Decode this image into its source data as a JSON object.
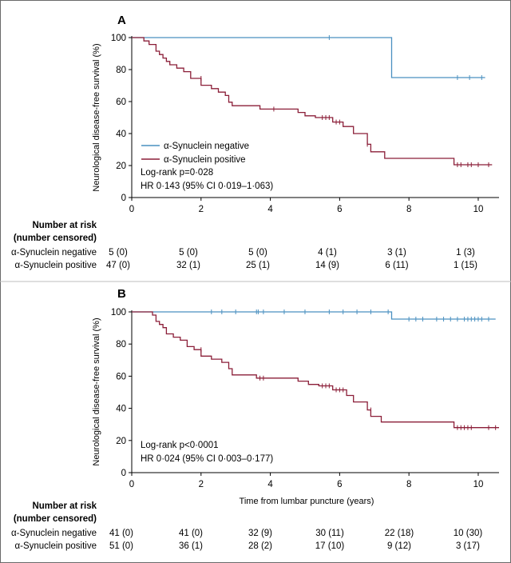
{
  "colors": {
    "negative": "#4a90c0",
    "positive": "#8b1e38",
    "axis": "#000000",
    "border": "#6a6a6a"
  },
  "chart_data": [
    {
      "type": "line",
      "panel": "A",
      "xlabel": "",
      "ylabel": "Neurological disease-free survival (%)",
      "xlim": [
        0,
        10.6
      ],
      "ylim": [
        0,
        100
      ],
      "xticks": [
        "0",
        "2",
        "4",
        "6",
        "8",
        "10"
      ],
      "yticks": [
        "0",
        "20",
        "40",
        "60",
        "80",
        "100"
      ],
      "legend_position": "middle-left",
      "series": [
        {
          "name": "α-Synuclein negative",
          "color_key": "negative",
          "steps": [
            [
              0,
              100
            ],
            [
              7.5,
              100
            ],
            [
              7.5,
              75
            ],
            [
              10.2,
              75
            ]
          ],
          "censored": [
            [
              5.7,
              100
            ],
            [
              9.4,
              75
            ],
            [
              9.75,
              75
            ],
            [
              10.1,
              75
            ]
          ]
        },
        {
          "name": "α-Synuclein positive",
          "color_key": "positive",
          "steps": [
            [
              0,
              100
            ],
            [
              0.35,
              100
            ],
            [
              0.35,
              97.9
            ],
            [
              0.5,
              97.9
            ],
            [
              0.5,
              95.7
            ],
            [
              0.7,
              95.7
            ],
            [
              0.7,
              91.5
            ],
            [
              0.8,
              91.5
            ],
            [
              0.8,
              89.4
            ],
            [
              0.9,
              89.4
            ],
            [
              0.9,
              87.2
            ],
            [
              1.0,
              87.2
            ],
            [
              1.0,
              85.1
            ],
            [
              1.1,
              85.1
            ],
            [
              1.1,
              83.0
            ],
            [
              1.3,
              83.0
            ],
            [
              1.3,
              80.9
            ],
            [
              1.5,
              80.9
            ],
            [
              1.5,
              78.7
            ],
            [
              1.7,
              78.7
            ],
            [
              1.7,
              74.5
            ],
            [
              2.0,
              74.5
            ],
            [
              2.0,
              70.2
            ],
            [
              2.3,
              70.2
            ],
            [
              2.3,
              68.1
            ],
            [
              2.5,
              68.1
            ],
            [
              2.5,
              65.9
            ],
            [
              2.7,
              65.9
            ],
            [
              2.7,
              63.8
            ],
            [
              2.8,
              63.8
            ],
            [
              2.8,
              59.6
            ],
            [
              2.9,
              59.6
            ],
            [
              2.9,
              57.4
            ],
            [
              3.7,
              57.4
            ],
            [
              3.7,
              55.3
            ],
            [
              4.8,
              55.3
            ],
            [
              4.8,
              53.2
            ],
            [
              5.0,
              53.2
            ],
            [
              5.0,
              51.1
            ],
            [
              5.3,
              51.1
            ],
            [
              5.3,
              50.0
            ],
            [
              5.8,
              50.0
            ],
            [
              5.8,
              47.2
            ],
            [
              6.1,
              47.2
            ],
            [
              6.1,
              44.4
            ],
            [
              6.4,
              44.4
            ],
            [
              6.4,
              40.0
            ],
            [
              6.8,
              40.0
            ],
            [
              6.8,
              33.3
            ],
            [
              6.9,
              33.3
            ],
            [
              6.9,
              28.6
            ],
            [
              7.3,
              28.6
            ],
            [
              7.3,
              24.5
            ],
            [
              9.3,
              24.5
            ],
            [
              9.3,
              20.5
            ],
            [
              10.4,
              20.5
            ]
          ],
          "censored": [
            [
              2.0,
              74.5
            ],
            [
              4.1,
              55.3
            ],
            [
              5.5,
              50.0
            ],
            [
              5.6,
              50.0
            ],
            [
              5.7,
              50.0
            ],
            [
              5.9,
              47.2
            ],
            [
              6.0,
              47.2
            ],
            [
              6.8,
              33.3
            ],
            [
              9.4,
              20.5
            ],
            [
              9.5,
              20.5
            ],
            [
              9.7,
              20.5
            ],
            [
              9.8,
              20.5
            ],
            [
              10.0,
              20.5
            ],
            [
              10.3,
              20.5
            ]
          ]
        }
      ],
      "annotations": [
        "Log-rank p=0·028",
        "HR 0·143 (95% CI 0·019–1·063)"
      ]
    },
    {
      "type": "line",
      "panel": "B",
      "xlabel": "Time from lumbar puncture (years)",
      "ylabel": "Neurological disease-free survival (%)",
      "xlim": [
        0,
        10.6
      ],
      "ylim": [
        0,
        100
      ],
      "xticks": [
        "0",
        "2",
        "4",
        "6",
        "8",
        "10"
      ],
      "yticks": [
        "0",
        "20",
        "40",
        "60",
        "80",
        "100"
      ],
      "series": [
        {
          "name": "α-Synuclein negative",
          "color_key": "negative",
          "steps": [
            [
              0,
              100
            ],
            [
              7.5,
              100
            ],
            [
              7.5,
              95.5
            ],
            [
              10.5,
              95.5
            ]
          ],
          "censored": [
            [
              2.3,
              100
            ],
            [
              2.6,
              100
            ],
            [
              3.0,
              100
            ],
            [
              3.6,
              100
            ],
            [
              3.65,
              100
            ],
            [
              3.8,
              100
            ],
            [
              4.4,
              100
            ],
            [
              5.0,
              100
            ],
            [
              5.7,
              100
            ],
            [
              6.1,
              100
            ],
            [
              6.5,
              100
            ],
            [
              6.9,
              100
            ],
            [
              7.4,
              100
            ],
            [
              8.0,
              95.5
            ],
            [
              8.2,
              95.5
            ],
            [
              8.4,
              95.5
            ],
            [
              8.8,
              95.5
            ],
            [
              9.0,
              95.5
            ],
            [
              9.2,
              95.5
            ],
            [
              9.4,
              95.5
            ],
            [
              9.6,
              95.5
            ],
            [
              9.7,
              95.5
            ],
            [
              9.8,
              95.5
            ],
            [
              9.9,
              95.5
            ],
            [
              10.0,
              95.5
            ],
            [
              10.1,
              95.5
            ],
            [
              10.3,
              95.5
            ]
          ]
        },
        {
          "name": "α-Synuclein positive",
          "color_key": "positive",
          "steps": [
            [
              0,
              100
            ],
            [
              0.6,
              100
            ],
            [
              0.6,
              98
            ],
            [
              0.7,
              98
            ],
            [
              0.7,
              94.1
            ],
            [
              0.8,
              94.1
            ],
            [
              0.8,
              92.2
            ],
            [
              0.9,
              92.2
            ],
            [
              0.9,
              90.2
            ],
            [
              1.0,
              90.2
            ],
            [
              1.0,
              86.3
            ],
            [
              1.2,
              86.3
            ],
            [
              1.2,
              84.3
            ],
            [
              1.4,
              84.3
            ],
            [
              1.4,
              82.4
            ],
            [
              1.6,
              82.4
            ],
            [
              1.6,
              78.4
            ],
            [
              1.8,
              78.4
            ],
            [
              1.8,
              76.5
            ],
            [
              2.0,
              76.5
            ],
            [
              2.0,
              72.5
            ],
            [
              2.3,
              72.5
            ],
            [
              2.3,
              70.6
            ],
            [
              2.6,
              70.6
            ],
            [
              2.6,
              68.6
            ],
            [
              2.8,
              68.6
            ],
            [
              2.8,
              64.7
            ],
            [
              2.9,
              64.7
            ],
            [
              2.9,
              60.8
            ],
            [
              3.6,
              60.8
            ],
            [
              3.6,
              58.8
            ],
            [
              4.8,
              58.8
            ],
            [
              4.8,
              56.9
            ],
            [
              5.1,
              56.9
            ],
            [
              5.1,
              54.9
            ],
            [
              5.4,
              54.9
            ],
            [
              5.4,
              54.0
            ],
            [
              5.8,
              54.0
            ],
            [
              5.8,
              51.5
            ],
            [
              6.2,
              51.5
            ],
            [
              6.2,
              48.0
            ],
            [
              6.4,
              48.0
            ],
            [
              6.4,
              44.0
            ],
            [
              6.8,
              44.0
            ],
            [
              6.8,
              39.0
            ],
            [
              6.9,
              39.0
            ],
            [
              6.9,
              35.0
            ],
            [
              7.2,
              35.0
            ],
            [
              7.2,
              31.5
            ],
            [
              9.3,
              31.5
            ],
            [
              9.3,
              28.0
            ],
            [
              10.6,
              28.0
            ]
          ],
          "censored": [
            [
              2.0,
              76.5
            ],
            [
              3.7,
              58.8
            ],
            [
              3.8,
              58.8
            ],
            [
              5.5,
              54.0
            ],
            [
              5.6,
              54.0
            ],
            [
              5.7,
              54.0
            ],
            [
              5.9,
              51.5
            ],
            [
              6.0,
              51.5
            ],
            [
              6.1,
              51.5
            ],
            [
              6.9,
              39.0
            ],
            [
              9.4,
              28.0
            ],
            [
              9.5,
              28.0
            ],
            [
              9.6,
              28.0
            ],
            [
              9.7,
              28.0
            ],
            [
              9.8,
              28.0
            ],
            [
              10.3,
              28.0
            ],
            [
              10.5,
              28.0
            ]
          ]
        }
      ],
      "annotations": [
        "Log-rank p<0·0001",
        "HR 0·024 (95% CI 0·003–0·177)"
      ]
    }
  ],
  "risk_tables": [
    {
      "heading": [
        "Number at risk",
        "(number censored)"
      ],
      "rows": [
        {
          "label": "α-Synuclein negative",
          "values": [
            "5 (0)",
            "5 (0)",
            "5 (0)",
            "4 (1)",
            "3 (1)",
            "1 (3)"
          ]
        },
        {
          "label": "α-Synuclein positive",
          "values": [
            "47 (0)",
            "32 (1)",
            "25 (1)",
            "14 (9)",
            "6 (11)",
            "1 (15)"
          ]
        }
      ]
    },
    {
      "heading": [
        "Number at risk",
        "(number censored)"
      ],
      "rows": [
        {
          "label": "α-Synuclein negative",
          "values": [
            "41 (0)",
            "41 (0)",
            "32 (9)",
            "30 (11)",
            "22 (18)",
            "10 (30)"
          ]
        },
        {
          "label": "α-Synuclein positive",
          "values": [
            "51 (0)",
            "36 (1)",
            "28 (2)",
            "17 (10)",
            "9 (12)",
            "3 (17)"
          ]
        }
      ]
    }
  ]
}
